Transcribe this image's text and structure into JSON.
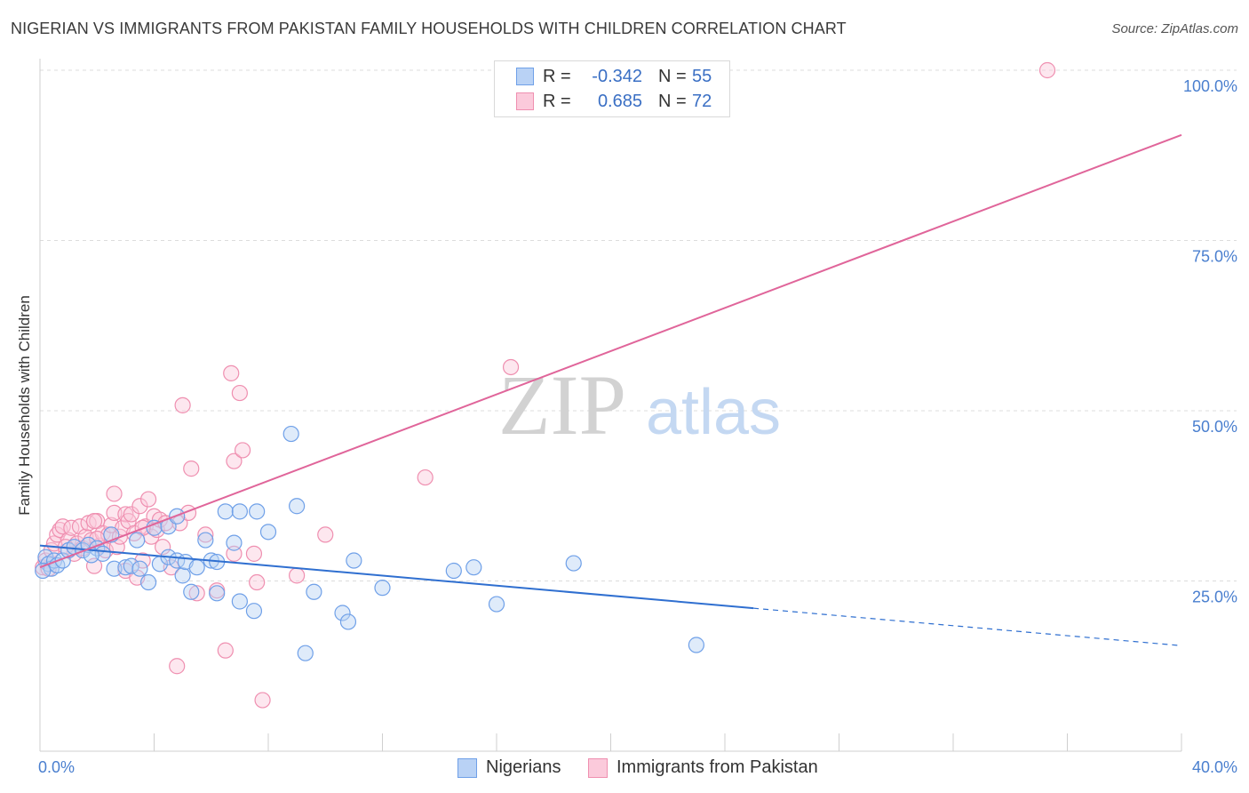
{
  "header": {
    "title": "NIGERIAN VS IMMIGRANTS FROM PAKISTAN FAMILY HOUSEHOLDS WITH CHILDREN CORRELATION CHART",
    "source": "Source: ZipAtlas.com"
  },
  "watermark": {
    "zip": "ZIP",
    "atlas": "atlas"
  },
  "legend": {
    "rows": [
      {
        "r_label": "R =",
        "r_value": "-0.342",
        "n_label": "N =",
        "n_value": "55",
        "color": "#6fa0e8",
        "fill": "#b9d2f5"
      },
      {
        "r_label": "R =",
        "r_value": "0.685",
        "n_label": "N =",
        "n_value": "72",
        "color": "#ef8fb0",
        "fill": "#fbcadb"
      }
    ]
  },
  "bottom_legend": {
    "series1": "Nigerians",
    "series2": "Immigrants from Pakistan"
  },
  "chart_data": {
    "type": "scatter",
    "title": "NIGERIAN VS IMMIGRANTS FROM PAKISTAN FAMILY HOUSEHOLDS WITH CHILDREN CORRELATION CHART",
    "xlabel": "",
    "ylabel": "Family Households with Children",
    "xlim": [
      0,
      40
    ],
    "ylim": [
      0,
      102
    ],
    "x_tick_labels": [
      "0.0%",
      "40.0%"
    ],
    "y_ticks": [
      25,
      50,
      75,
      100
    ],
    "y_tick_labels": [
      "25.0%",
      "50.0%",
      "75.0%",
      "100.0%"
    ],
    "grid": true,
    "series": [
      {
        "name": "Nigerians",
        "color": "#6fa0e8",
        "fill": "#b9d2f5",
        "line_color": "#2f6fd0",
        "trend": {
          "x0": 0,
          "y0": 30.2,
          "x1": 25,
          "y1": 21.0,
          "dash_to_x": 40,
          "dash_to_y": 15.5
        },
        "points": [
          [
            0.2,
            28.5
          ],
          [
            0.3,
            27.5
          ],
          [
            0.4,
            26.8
          ],
          [
            0.5,
            28.0
          ],
          [
            0.6,
            27.3
          ],
          [
            0.8,
            28.0
          ],
          [
            1.0,
            29.5
          ],
          [
            1.2,
            30.0
          ],
          [
            1.5,
            29.5
          ],
          [
            1.7,
            30.3
          ],
          [
            2.0,
            29.8
          ],
          [
            2.2,
            29.0
          ],
          [
            2.5,
            31.8
          ],
          [
            2.6,
            26.8
          ],
          [
            3.0,
            27.0
          ],
          [
            3.2,
            27.2
          ],
          [
            3.4,
            31.0
          ],
          [
            3.5,
            26.8
          ],
          [
            3.8,
            24.8
          ],
          [
            4.0,
            32.8
          ],
          [
            4.2,
            27.5
          ],
          [
            4.5,
            28.5
          ],
          [
            4.5,
            33.0
          ],
          [
            4.8,
            34.5
          ],
          [
            4.8,
            28.0
          ],
          [
            5.0,
            25.8
          ],
          [
            5.1,
            27.8
          ],
          [
            5.3,
            23.4
          ],
          [
            5.5,
            27.0
          ],
          [
            5.8,
            31.0
          ],
          [
            6.0,
            28.0
          ],
          [
            6.2,
            27.8
          ],
          [
            6.2,
            23.2
          ],
          [
            6.5,
            35.2
          ],
          [
            6.8,
            30.6
          ],
          [
            7.0,
            35.2
          ],
          [
            7.0,
            22.0
          ],
          [
            7.5,
            20.6
          ],
          [
            7.6,
            35.2
          ],
          [
            8.0,
            32.2
          ],
          [
            8.8,
            46.6
          ],
          [
            9.0,
            36.0
          ],
          [
            9.3,
            14.4
          ],
          [
            9.6,
            23.4
          ],
          [
            10.6,
            20.3
          ],
          [
            10.8,
            19.0
          ],
          [
            11.0,
            28.0
          ],
          [
            12.0,
            24.0
          ],
          [
            14.5,
            26.5
          ],
          [
            15.2,
            27.0
          ],
          [
            16.0,
            21.6
          ],
          [
            18.7,
            27.6
          ],
          [
            23.0,
            15.6
          ],
          [
            0.1,
            26.5
          ],
          [
            1.8,
            28.8
          ]
        ]
      },
      {
        "name": "Immigrants from Pakistan",
        "color": "#ef8fb0",
        "fill": "#fbcadb",
        "line_color": "#e0659a",
        "trend": {
          "x0": 0,
          "y0": 27.0,
          "x1": 40,
          "y1": 90.5
        },
        "points": [
          [
            0.1,
            27.0
          ],
          [
            0.2,
            28.0
          ],
          [
            0.3,
            26.8
          ],
          [
            0.4,
            29.5
          ],
          [
            0.5,
            30.5
          ],
          [
            0.6,
            31.8
          ],
          [
            0.7,
            32.5
          ],
          [
            0.8,
            33.0
          ],
          [
            1.0,
            31.0
          ],
          [
            1.1,
            32.8
          ],
          [
            1.2,
            29.0
          ],
          [
            1.3,
            30.5
          ],
          [
            1.4,
            33.0
          ],
          [
            1.5,
            29.8
          ],
          [
            1.6,
            31.5
          ],
          [
            1.7,
            33.5
          ],
          [
            1.8,
            31.0
          ],
          [
            1.9,
            27.2
          ],
          [
            2.0,
            33.8
          ],
          [
            2.1,
            30.2
          ],
          [
            2.2,
            32.0
          ],
          [
            2.3,
            29.5
          ],
          [
            2.4,
            31.8
          ],
          [
            2.5,
            33.2
          ],
          [
            2.6,
            35.0
          ],
          [
            2.6,
            37.8
          ],
          [
            2.7,
            30.0
          ],
          [
            2.8,
            31.5
          ],
          [
            2.9,
            32.8
          ],
          [
            3.0,
            34.8
          ],
          [
            3.0,
            26.5
          ],
          [
            3.1,
            33.8
          ],
          [
            3.2,
            34.8
          ],
          [
            3.3,
            32.0
          ],
          [
            3.4,
            25.5
          ],
          [
            3.5,
            36.0
          ],
          [
            3.6,
            28.0
          ],
          [
            3.7,
            33.0
          ],
          [
            3.8,
            37.0
          ],
          [
            3.9,
            31.5
          ],
          [
            4.0,
            34.5
          ],
          [
            4.1,
            32.5
          ],
          [
            4.2,
            34.0
          ],
          [
            4.3,
            30.0
          ],
          [
            4.4,
            33.5
          ],
          [
            4.6,
            27.0
          ],
          [
            4.8,
            12.5
          ],
          [
            4.9,
            33.5
          ],
          [
            5.0,
            50.8
          ],
          [
            5.2,
            35.0
          ],
          [
            5.3,
            41.5
          ],
          [
            5.5,
            23.2
          ],
          [
            5.8,
            31.8
          ],
          [
            6.2,
            23.6
          ],
          [
            6.5,
            14.8
          ],
          [
            6.7,
            55.5
          ],
          [
            6.8,
            42.6
          ],
          [
            6.8,
            29.0
          ],
          [
            7.0,
            52.6
          ],
          [
            7.1,
            44.2
          ],
          [
            7.5,
            29.0
          ],
          [
            7.6,
            24.8
          ],
          [
            7.8,
            7.5
          ],
          [
            9.0,
            25.8
          ],
          [
            10.0,
            31.8
          ],
          [
            13.5,
            40.2
          ],
          [
            16.5,
            56.4
          ],
          [
            35.3,
            100.0
          ],
          [
            0.9,
            30.0
          ],
          [
            1.9,
            33.8
          ],
          [
            2.0,
            31.2
          ],
          [
            3.6,
            32.8
          ]
        ]
      }
    ]
  }
}
